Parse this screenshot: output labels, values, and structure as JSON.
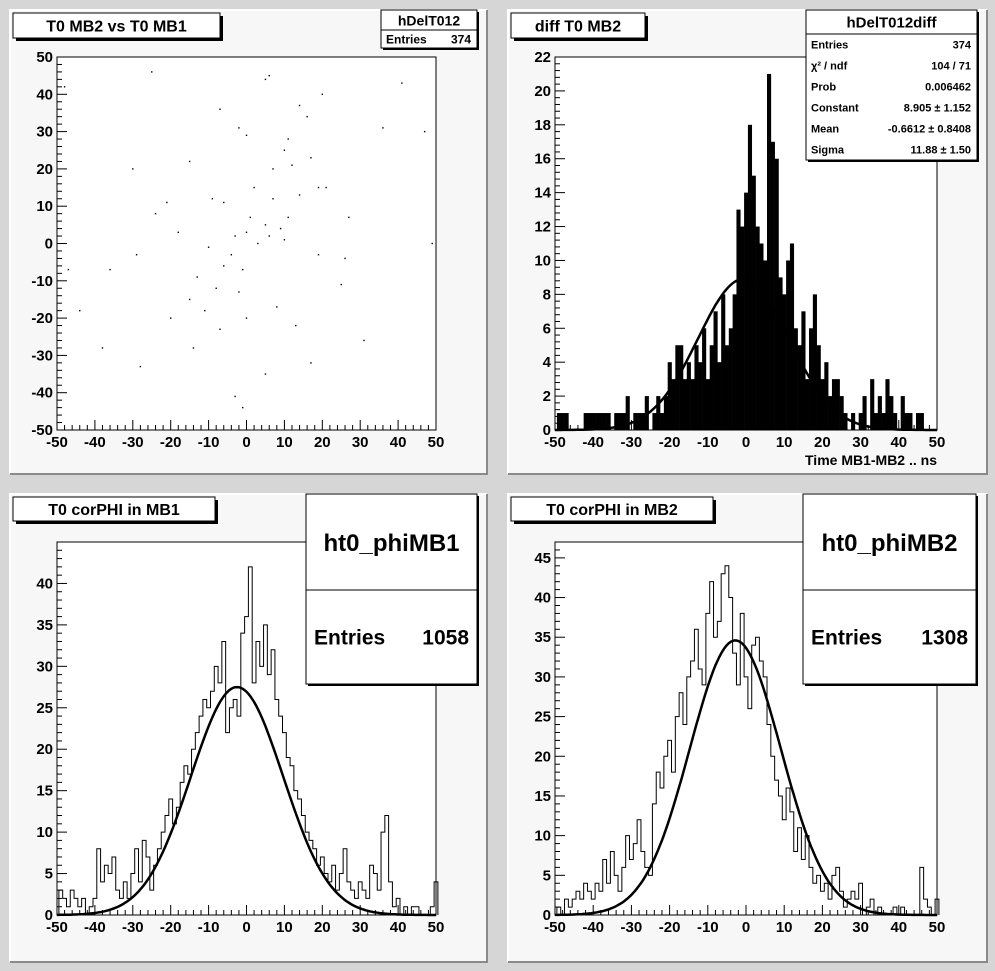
{
  "chart_data": [
    {
      "type": "scatter",
      "title": "T0 MB2 vs T0 MB1",
      "stats": {
        "name": "hDelT012",
        "rows": [
          {
            "label": "Entries",
            "value": "374"
          }
        ]
      },
      "xlim": [
        -50,
        50
      ],
      "ylim": [
        -50,
        50
      ],
      "xticks": [
        -50,
        -40,
        -30,
        -20,
        -10,
        0,
        10,
        20,
        30,
        40,
        50
      ],
      "yticks": [
        -50,
        -40,
        -30,
        -20,
        -10,
        0,
        10,
        20,
        30,
        40,
        50
      ],
      "xlabel": "",
      "points_sample": [
        [
          -25,
          46
        ],
        [
          6,
          45
        ],
        [
          5,
          44
        ],
        [
          -7,
          36
        ],
        [
          16,
          34
        ],
        [
          -48,
          42
        ],
        [
          41,
          43
        ],
        [
          14,
          37
        ],
        [
          20,
          40
        ],
        [
          36,
          31
        ],
        [
          47,
          30
        ],
        [
          0,
          29
        ],
        [
          -2,
          31
        ],
        [
          11,
          28
        ],
        [
          17,
          23
        ],
        [
          -15,
          22
        ],
        [
          10,
          25
        ],
        [
          -30,
          20
        ],
        [
          7,
          20
        ],
        [
          12,
          21
        ],
        [
          21,
          15
        ],
        [
          -9,
          12
        ],
        [
          -6,
          11
        ],
        [
          2,
          15
        ],
        [
          7,
          12
        ],
        [
          14,
          13
        ],
        [
          27,
          7
        ],
        [
          -24,
          8
        ],
        [
          1,
          7
        ],
        [
          5,
          5
        ],
        [
          9,
          4
        ],
        [
          -3,
          2
        ],
        [
          0,
          3
        ],
        [
          -18,
          3
        ],
        [
          -10,
          -1
        ],
        [
          -4,
          -3
        ],
        [
          -6,
          -6
        ],
        [
          -1,
          -7
        ],
        [
          3,
          0
        ],
        [
          6,
          2
        ],
        [
          10,
          1
        ],
        [
          19,
          -3
        ],
        [
          -29,
          -3
        ],
        [
          -36,
          -7
        ],
        [
          -13,
          -9
        ],
        [
          -8,
          -12
        ],
        [
          -2,
          -13
        ],
        [
          -15,
          -15
        ],
        [
          -11,
          -18
        ],
        [
          -20,
          -20
        ],
        [
          -7,
          -23
        ],
        [
          -14,
          -28
        ],
        [
          0,
          -20
        ],
        [
          8,
          -17
        ],
        [
          13,
          -22
        ],
        [
          17,
          -32
        ],
        [
          -38,
          -28
        ],
        [
          -28,
          -33
        ],
        [
          -44,
          -18
        ],
        [
          -47,
          -7
        ],
        [
          5,
          -35
        ],
        [
          -3,
          -41
        ],
        [
          -1,
          -44
        ],
        [
          25,
          -11
        ],
        [
          31,
          -26
        ],
        [
          49,
          0
        ],
        [
          26,
          -4
        ],
        [
          11,
          7
        ],
        [
          -21,
          11
        ],
        [
          19,
          15
        ]
      ]
    },
    {
      "type": "bar",
      "title": "diff T0 MB2",
      "stats": {
        "name": "hDelT012diff",
        "rows": [
          {
            "label": "Entries",
            "value": "374"
          },
          {
            "label": "χ² / ndf",
            "value": "104 / 71"
          },
          {
            "label": "Prob",
            "value": "0.006462"
          },
          {
            "label": "Constant",
            "value": "8.905 ± 1.152"
          },
          {
            "label": "Mean",
            "value": "-0.6612 ± 0.8408"
          },
          {
            "label": "Sigma",
            "value": "11.88 ± 1.50"
          }
        ]
      },
      "xlabel": "Time MB1-MB2  ..  ns",
      "xlim": [
        -50,
        50
      ],
      "ylim": [
        0,
        22
      ],
      "xticks": [
        -50,
        -40,
        -30,
        -20,
        -10,
        0,
        10,
        20,
        30,
        40,
        50
      ],
      "yticks": [
        0,
        2,
        4,
        6,
        8,
        10,
        12,
        14,
        16,
        18,
        20,
        22
      ],
      "bin_width": 1,
      "x": [
        -49,
        -48,
        -47,
        -46,
        -45,
        -44,
        -43,
        -42,
        -41,
        -40,
        -39,
        -38,
        -37,
        -36,
        -35,
        -34,
        -33,
        -32,
        -31,
        -30,
        -29,
        -28,
        -27,
        -26,
        -25,
        -24,
        -23,
        -22,
        -21,
        -20,
        -19,
        -18,
        -17,
        -16,
        -15,
        -14,
        -13,
        -12,
        -11,
        -10,
        -9,
        -8,
        -7,
        -6,
        -5,
        -4,
        -3,
        -2,
        -1,
        0,
        1,
        2,
        3,
        4,
        5,
        6,
        7,
        8,
        9,
        10,
        11,
        12,
        13,
        14,
        15,
        16,
        17,
        18,
        19,
        20,
        21,
        22,
        23,
        24,
        25,
        26,
        27,
        28,
        29,
        30,
        31,
        32,
        33,
        34,
        35,
        36,
        37,
        38,
        39,
        40,
        41,
        42,
        43,
        44,
        45,
        46,
        47,
        48,
        49,
        50
      ],
      "values": [
        1,
        1,
        1,
        0,
        0,
        0,
        0,
        1,
        1,
        1,
        1,
        1,
        1,
        1,
        0,
        1,
        1,
        1,
        2,
        0,
        1,
        1,
        1,
        2,
        0,
        1,
        2,
        1,
        2,
        4,
        3,
        5,
        5,
        3,
        4,
        3,
        5,
        4,
        6,
        3,
        5,
        7,
        4,
        8,
        5,
        6,
        8,
        13,
        12,
        14,
        18,
        15,
        12,
        11,
        10,
        21,
        17,
        16,
        9,
        8,
        10,
        11,
        6,
        5,
        7,
        3,
        6,
        8,
        5,
        3,
        4,
        2,
        3,
        3,
        2,
        1,
        0,
        1,
        0,
        1,
        2,
        0,
        3,
        1,
        2,
        1,
        3,
        2,
        1,
        0,
        2,
        1,
        1,
        0,
        1,
        1,
        0,
        0,
        0,
        0
      ],
      "fit": {
        "constant": 8.905,
        "mean": -0.6612,
        "sigma": 11.88
      }
    },
    {
      "type": "bar",
      "title": "T0 corPHI in MB1",
      "stats": {
        "name": "ht0_phiMB1",
        "rows": [
          {
            "label": "Entries",
            "value": "1058"
          }
        ]
      },
      "xlim": [
        -50,
        50
      ],
      "ylim": [
        0,
        45
      ],
      "xticks": [
        -50,
        -40,
        -30,
        -20,
        -10,
        0,
        10,
        20,
        30,
        40,
        50
      ],
      "yticks": [
        0,
        5,
        10,
        15,
        20,
        25,
        30,
        35,
        40
      ],
      "bin_width": 1,
      "x": [
        -49,
        -48,
        -47,
        -46,
        -45,
        -44,
        -43,
        -42,
        -41,
        -40,
        -39,
        -38,
        -37,
        -36,
        -35,
        -34,
        -33,
        -32,
        -31,
        -30,
        -29,
        -28,
        -27,
        -26,
        -25,
        -24,
        -23,
        -22,
        -21,
        -20,
        -19,
        -18,
        -17,
        -16,
        -15,
        -14,
        -13,
        -12,
        -11,
        -10,
        -9,
        -8,
        -7,
        -6,
        -5,
        -4,
        -3,
        -2,
        -1,
        0,
        1,
        2,
        3,
        4,
        5,
        6,
        7,
        8,
        9,
        10,
        11,
        12,
        13,
        14,
        15,
        16,
        17,
        18,
        19,
        20,
        21,
        22,
        23,
        24,
        25,
        26,
        27,
        28,
        29,
        30,
        31,
        32,
        33,
        34,
        35,
        36,
        37,
        38,
        39,
        40,
        41,
        42,
        43,
        44,
        45,
        46,
        47,
        48,
        49,
        50
      ],
      "values": [
        3,
        2,
        1,
        3,
        2,
        1,
        2,
        0,
        1,
        2,
        8,
        4,
        6,
        5,
        7,
        3,
        2,
        4,
        2,
        5,
        8,
        4,
        9,
        7,
        3,
        6,
        8,
        10,
        12,
        14,
        11,
        13,
        16,
        18,
        17,
        20,
        22,
        24,
        26,
        25,
        27,
        30,
        28,
        33,
        22,
        25,
        26,
        24,
        34,
        36,
        42,
        28,
        33,
        30,
        35,
        29,
        32,
        26,
        24,
        22,
        19,
        18,
        15,
        14,
        12,
        10,
        9,
        8,
        6,
        7,
        5,
        4,
        6,
        3,
        5,
        8,
        4,
        3,
        2,
        4,
        3,
        2,
        6,
        5,
        3,
        10,
        12,
        4,
        1,
        2,
        0,
        1,
        0,
        1,
        1,
        0,
        0,
        0,
        1,
        4
      ],
      "fit": {
        "constant": 27.5,
        "mean": -2.5,
        "sigma": 12.2
      }
    },
    {
      "type": "bar",
      "title": "T0 corPHI in MB2",
      "stats": {
        "name": "ht0_phiMB2",
        "rows": [
          {
            "label": "Entries",
            "value": "1308"
          }
        ]
      },
      "xlim": [
        -50,
        50
      ],
      "ylim": [
        0,
        47
      ],
      "xticks": [
        -50,
        -40,
        -30,
        -20,
        -10,
        0,
        10,
        20,
        30,
        40,
        50
      ],
      "yticks": [
        0,
        5,
        10,
        15,
        20,
        25,
        30,
        35,
        40,
        45
      ],
      "bin_width": 1,
      "x": [
        -49,
        -48,
        -47,
        -46,
        -45,
        -44,
        -43,
        -42,
        -41,
        -40,
        -39,
        -38,
        -37,
        -36,
        -35,
        -34,
        -33,
        -32,
        -31,
        -30,
        -29,
        -28,
        -27,
        -26,
        -25,
        -24,
        -23,
        -22,
        -21,
        -20,
        -19,
        -18,
        -17,
        -16,
        -15,
        -14,
        -13,
        -12,
        -11,
        -10,
        -9,
        -8,
        -7,
        -6,
        -5,
        -4,
        -3,
        -2,
        -1,
        0,
        1,
        2,
        3,
        4,
        5,
        6,
        7,
        8,
        9,
        10,
        11,
        12,
        13,
        14,
        15,
        16,
        17,
        18,
        19,
        20,
        21,
        22,
        23,
        24,
        25,
        26,
        27,
        28,
        29,
        30,
        31,
        32,
        33,
        34,
        35,
        36,
        37,
        38,
        39,
        40,
        41,
        42,
        43,
        44,
        45,
        46,
        47,
        48,
        49,
        50
      ],
      "values": [
        1,
        0,
        2,
        1,
        2,
        3,
        2,
        4,
        3,
        2,
        4,
        3,
        7,
        4,
        8,
        5,
        3,
        6,
        10,
        7,
        9,
        12,
        8,
        6,
        5,
        14,
        18,
        16,
        20,
        22,
        18,
        25,
        28,
        24,
        30,
        32,
        36,
        31,
        29,
        38,
        42,
        35,
        37,
        43,
        44,
        40,
        33,
        29,
        38,
        30,
        26,
        34,
        35,
        32,
        30,
        24,
        20,
        17,
        15,
        12,
        16,
        13,
        8,
        11,
        7,
        10,
        6,
        4,
        5,
        3,
        4,
        2,
        5,
        6,
        3,
        1,
        2,
        3,
        2,
        4,
        0,
        1,
        2,
        0,
        1,
        0,
        0,
        0,
        1,
        0,
        1,
        0,
        0,
        0,
        0,
        6,
        2,
        1,
        0,
        2
      ],
      "fit": {
        "constant": 34.6,
        "mean": -2.8,
        "sigma": 11.9
      }
    }
  ]
}
